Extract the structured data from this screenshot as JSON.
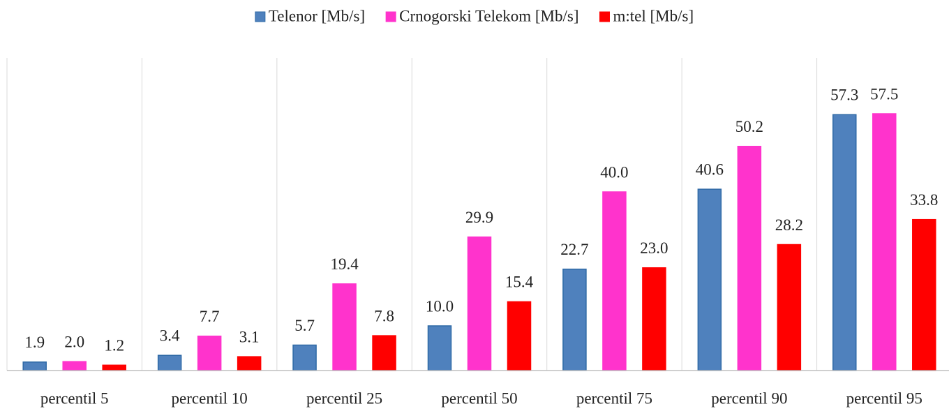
{
  "chart_data": {
    "type": "bar",
    "categories": [
      "percentil 5",
      "percentil 10",
      "percentil 25",
      "percentil 50",
      "percentil 75",
      "percentil 90",
      "percentil 95"
    ],
    "series": [
      {
        "name": "Telenor [Mb/s]",
        "color": "#4f81bd",
        "values": [
          1.9,
          3.4,
          5.7,
          10,
          22.7,
          40.6,
          57.3
        ],
        "value_labels": [
          "1.9",
          "3.4",
          "5.7",
          "10.0",
          "22.7",
          "40.6",
          "57.3"
        ]
      },
      {
        "name": "Crnogorski Telekom [Mb/s]",
        "color": "#ff33cc",
        "values": [
          2,
          7.7,
          19.4,
          29.9,
          40,
          50.2,
          57.5
        ],
        "value_labels": [
          "2.0",
          "7.7",
          "19.4",
          "29.9",
          "40.0",
          "50.2",
          "57.5"
        ]
      },
      {
        "name": "m:tel [Mb/s]",
        "color": "#ff0000",
        "values": [
          1.2,
          3.1,
          7.8,
          15.4,
          23,
          28.2,
          33.8
        ],
        "value_labels": [
          "1.2",
          "3.1",
          "7.8",
          "15.4",
          "23.0",
          "28.2",
          "33.8"
        ]
      }
    ],
    "ylim": [
      0,
      70
    ],
    "legend": "top"
  }
}
